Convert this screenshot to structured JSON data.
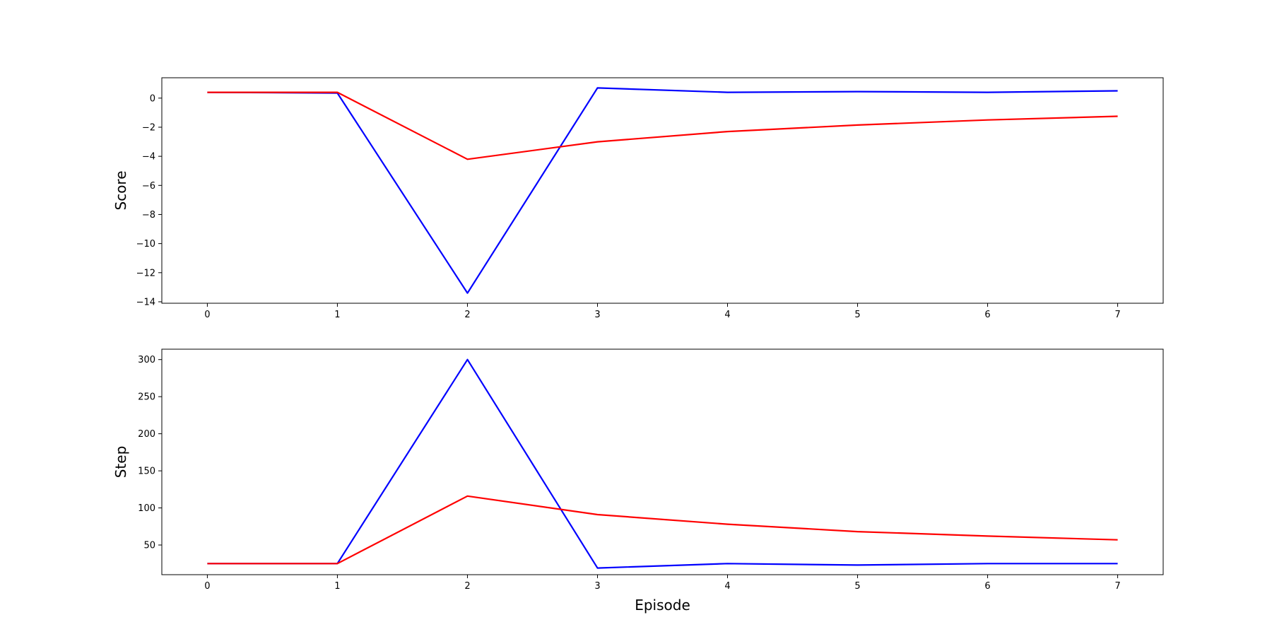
{
  "colors": {
    "series_1": "#0000ff",
    "series_2": "#ff0000",
    "axes": "#000000",
    "background": "#ffffff"
  },
  "chart_data": [
    {
      "type": "line",
      "xlabel": "",
      "ylabel": "Score",
      "xlim": [
        -0.35,
        7.35
      ],
      "ylim": [
        -14.1,
        1.4
      ],
      "xticks": [
        0,
        1,
        2,
        3,
        4,
        5,
        6,
        7
      ],
      "yticks": [
        0,
        -2,
        -4,
        -6,
        -8,
        -10,
        -12,
        -14
      ],
      "grid": false,
      "legend": "none",
      "x": [
        0,
        1,
        2,
        3,
        4,
        5,
        6,
        7
      ],
      "series": [
        {
          "color": "#0000ff",
          "values": [
            0.4,
            0.35,
            -13.4,
            0.7,
            0.4,
            0.45,
            0.4,
            0.5
          ]
        },
        {
          "color": "#ff0000",
          "values": [
            0.4,
            0.4,
            -4.2,
            -3.0,
            -2.3,
            -1.85,
            -1.5,
            -1.25
          ]
        }
      ]
    },
    {
      "type": "line",
      "xlabel": "Episode",
      "ylabel": "Step",
      "xlim": [
        -0.35,
        7.35
      ],
      "ylim": [
        10,
        314
      ],
      "xticks": [
        0,
        1,
        2,
        3,
        4,
        5,
        6,
        7
      ],
      "yticks": [
        50,
        100,
        150,
        200,
        250,
        300
      ],
      "grid": false,
      "legend": "none",
      "x": [
        0,
        1,
        2,
        3,
        4,
        5,
        6,
        7
      ],
      "series": [
        {
          "color": "#0000ff",
          "values": [
            25,
            25,
            300,
            19,
            25,
            23,
            25,
            25
          ]
        },
        {
          "color": "#ff0000",
          "values": [
            25,
            25,
            116,
            91,
            78,
            68,
            62,
            57
          ]
        }
      ]
    }
  ]
}
